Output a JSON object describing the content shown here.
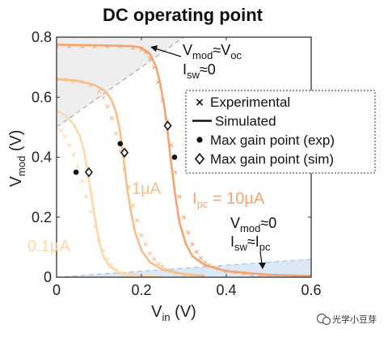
{
  "chart_data": {
    "type": "line",
    "title": "DC operating point",
    "xlabel_main": "V",
    "xlabel_sub": "in",
    "xlabel_unit": " (V)",
    "ylabel_main": "V",
    "ylabel_sub": "mod",
    "ylabel_unit": " (V)",
    "xlim": [
      0,
      0.6
    ],
    "ylim": [
      0,
      0.8
    ],
    "x_ticks": [
      0,
      0.2,
      0.4,
      0.6
    ],
    "x_tick_labels": [
      "0",
      "0.2",
      "0.4",
      "0.6"
    ],
    "y_ticks": [
      0,
      0.2,
      0.4,
      0.6,
      0.8
    ],
    "y_tick_labels": [
      "0",
      "0.2",
      "0.4",
      "0.6",
      "0.8"
    ],
    "grid": false,
    "legend_position": "right",
    "legend": [
      {
        "symbol": "x",
        "label": "Experimental"
      },
      {
        "symbol": "line",
        "label": "Simulated"
      },
      {
        "symbol": "dot",
        "label": "Max gain point (exp)"
      },
      {
        "symbol": "diamond",
        "label": "Max gain point (sim)"
      }
    ],
    "series": [
      {
        "label": "0.1µA",
        "color": "#fcd9a6",
        "simulated": [
          [
            0,
            0.555
          ],
          [
            0.02,
            0.54
          ],
          [
            0.04,
            0.51
          ],
          [
            0.055,
            0.47
          ],
          [
            0.065,
            0.42
          ],
          [
            0.072,
            0.36
          ],
          [
            0.08,
            0.29
          ],
          [
            0.09,
            0.2
          ],
          [
            0.1,
            0.12
          ],
          [
            0.11,
            0.07
          ],
          [
            0.125,
            0.035
          ],
          [
            0.15,
            0.015
          ],
          [
            0.2,
            0.005
          ],
          [
            0.25,
            0.002
          ]
        ],
        "experimental": [
          [
            0,
            0.5
          ],
          [
            0.01,
            0.49
          ],
          [
            0.02,
            0.47
          ],
          [
            0.03,
            0.44
          ],
          [
            0.04,
            0.41
          ],
          [
            0.05,
            0.37
          ],
          [
            0.06,
            0.32
          ],
          [
            0.07,
            0.27
          ],
          [
            0.08,
            0.22
          ],
          [
            0.09,
            0.17
          ],
          [
            0.1,
            0.125
          ],
          [
            0.11,
            0.09
          ],
          [
            0.12,
            0.06
          ],
          [
            0.13,
            0.04
          ],
          [
            0.14,
            0.025
          ],
          [
            0.15,
            0.015
          ],
          [
            0.16,
            0.01
          ],
          [
            0.17,
            0.006
          ],
          [
            0.18,
            0.004
          ],
          [
            0.19,
            0.003
          ],
          [
            0.2,
            0.002
          ],
          [
            0.22,
            0.001
          ]
        ],
        "max_gain_exp": [
          0.046,
          0.35
        ],
        "max_gain_sim": [
          0.076,
          0.35
        ]
      },
      {
        "label": "1µA",
        "color": "#f9be88",
        "simulated": [
          [
            0,
            0.66
          ],
          [
            0.05,
            0.655
          ],
          [
            0.09,
            0.64
          ],
          [
            0.115,
            0.62
          ],
          [
            0.13,
            0.59
          ],
          [
            0.14,
            0.55
          ],
          [
            0.148,
            0.5
          ],
          [
            0.155,
            0.43
          ],
          [
            0.16,
            0.37
          ],
          [
            0.166,
            0.3
          ],
          [
            0.175,
            0.22
          ],
          [
            0.185,
            0.15
          ],
          [
            0.2,
            0.09
          ],
          [
            0.22,
            0.05
          ],
          [
            0.25,
            0.025
          ],
          [
            0.3,
            0.01
          ],
          [
            0.35,
            0.005
          ]
        ],
        "experimental": [
          [
            0,
            0.66
          ],
          [
            0.02,
            0.66
          ],
          [
            0.04,
            0.655
          ],
          [
            0.06,
            0.65
          ],
          [
            0.08,
            0.64
          ],
          [
            0.1,
            0.62
          ],
          [
            0.11,
            0.6
          ],
          [
            0.12,
            0.57
          ],
          [
            0.13,
            0.53
          ],
          [
            0.14,
            0.48
          ],
          [
            0.15,
            0.42
          ],
          [
            0.16,
            0.36
          ],
          [
            0.17,
            0.3
          ],
          [
            0.18,
            0.24
          ],
          [
            0.19,
            0.19
          ],
          [
            0.2,
            0.14
          ],
          [
            0.21,
            0.11
          ],
          [
            0.22,
            0.08
          ],
          [
            0.23,
            0.06
          ],
          [
            0.24,
            0.045
          ],
          [
            0.25,
            0.035
          ],
          [
            0.26,
            0.025
          ],
          [
            0.27,
            0.02
          ],
          [
            0.28,
            0.015
          ],
          [
            0.3,
            0.01
          ],
          [
            0.32,
            0.006
          ],
          [
            0.34,
            0.004
          ]
        ],
        "max_gain_exp": [
          0.15,
          0.445
        ],
        "max_gain_sim": [
          0.16,
          0.415
        ]
      },
      {
        "label": "10µA",
        "color": "#f6a46f",
        "simulated": [
          [
            0,
            0.775
          ],
          [
            0.1,
            0.773
          ],
          [
            0.18,
            0.77
          ],
          [
            0.2,
            0.765
          ],
          [
            0.22,
            0.745
          ],
          [
            0.235,
            0.7
          ],
          [
            0.245,
            0.64
          ],
          [
            0.255,
            0.56
          ],
          [
            0.262,
            0.48
          ],
          [
            0.27,
            0.38
          ],
          [
            0.28,
            0.27
          ],
          [
            0.29,
            0.18
          ],
          [
            0.305,
            0.11
          ],
          [
            0.32,
            0.07
          ],
          [
            0.35,
            0.04
          ],
          [
            0.4,
            0.02
          ],
          [
            0.5,
            0.008
          ],
          [
            0.6,
            0.004
          ]
        ],
        "experimental": [
          [
            0,
            0.77
          ],
          [
            0.03,
            0.77
          ],
          [
            0.06,
            0.77
          ],
          [
            0.09,
            0.77
          ],
          [
            0.12,
            0.77
          ],
          [
            0.15,
            0.77
          ],
          [
            0.18,
            0.765
          ],
          [
            0.2,
            0.76
          ],
          [
            0.21,
            0.75
          ],
          [
            0.22,
            0.73
          ],
          [
            0.23,
            0.7
          ],
          [
            0.24,
            0.65
          ],
          [
            0.25,
            0.59
          ],
          [
            0.26,
            0.52
          ],
          [
            0.27,
            0.44
          ],
          [
            0.28,
            0.35
          ],
          [
            0.29,
            0.27
          ],
          [
            0.3,
            0.2
          ],
          [
            0.31,
            0.15
          ],
          [
            0.32,
            0.11
          ],
          [
            0.33,
            0.085
          ],
          [
            0.34,
            0.065
          ],
          [
            0.35,
            0.05
          ],
          [
            0.36,
            0.04
          ],
          [
            0.38,
            0.03
          ],
          [
            0.4,
            0.022
          ],
          [
            0.42,
            0.017
          ],
          [
            0.44,
            0.013
          ],
          [
            0.46,
            0.01
          ],
          [
            0.48,
            0.008
          ],
          [
            0.5,
            0.006
          ],
          [
            0.52,
            0.005
          ],
          [
            0.54,
            0.004
          ],
          [
            0.56,
            0.003
          ]
        ],
        "max_gain_exp": [
          0.278,
          0.4
        ],
        "max_gain_sim": [
          0.262,
          0.505
        ]
      }
    ],
    "curve_labels": {
      "small": "0.1µA",
      "mid": "1µA",
      "large_prefix": "I",
      "large_sub": "pc",
      "large_suffix": " = 10µA"
    },
    "annotations": {
      "top_line1_main": "V",
      "top_line1_sub": "mod",
      "top_line1_rest": "≈V",
      "top_line1_sub2": "oc",
      "top_line2_main": "I",
      "top_line2_sub": "sw",
      "top_line2_rest": "≈0",
      "bottom_line1_main": "V",
      "bottom_line1_sub": "mod",
      "bottom_line1_rest": "≈0",
      "bottom_line2_main": "I",
      "bottom_line2_sub": "sw",
      "bottom_line2_rest": "≈I",
      "bottom_line2_sub2": "pc"
    },
    "region_colors": {
      "upper": "#eeeeee",
      "lower": "#dbe8f5",
      "dashed": "#aaaaaa"
    }
  },
  "watermark": {
    "text": "光学小豆芽",
    "icon": "wechat-icon"
  }
}
